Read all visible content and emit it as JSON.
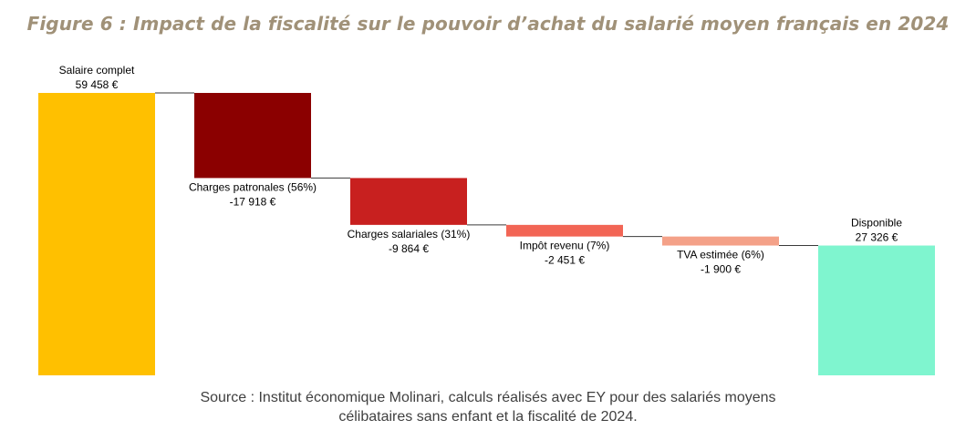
{
  "figure": {
    "title": "Figure 6 : Impact de la fiscalité sur le pouvoir d’achat du salarié moyen français en 2024"
  },
  "source": {
    "line1": "Source : Institut économique Molinari, calculs réalisés avec EY pour des salariés moyens",
    "line2": "célibataires sans enfant et la fiscalité de 2024."
  },
  "chart_data": {
    "type": "bar",
    "subtype": "waterfall",
    "categories": [
      "Salaire complet",
      "Charges patronales (56%)",
      "Charges salariales (31%)",
      "Impôt revenu (7%)",
      "TVA estimée (6%)",
      "Disponible"
    ],
    "values": [
      59458,
      -17918,
      -9864,
      -2451,
      -1900,
      27326
    ],
    "value_labels": [
      "59 458 €",
      "-17 918 €",
      "-9 864 €",
      "-2 451 €",
      "-1 900 €",
      "27 326 €"
    ],
    "kinds": [
      "total",
      "delta",
      "delta",
      "delta",
      "delta",
      "total"
    ],
    "colors": [
      "#ffc000",
      "#8b0000",
      "#c8201f",
      "#f26555",
      "#f4a188",
      "#7ff5cf"
    ],
    "connector_color": "#3a3a3a",
    "ylim": [
      0,
      59458
    ],
    "grid": false,
    "legend": "none"
  }
}
